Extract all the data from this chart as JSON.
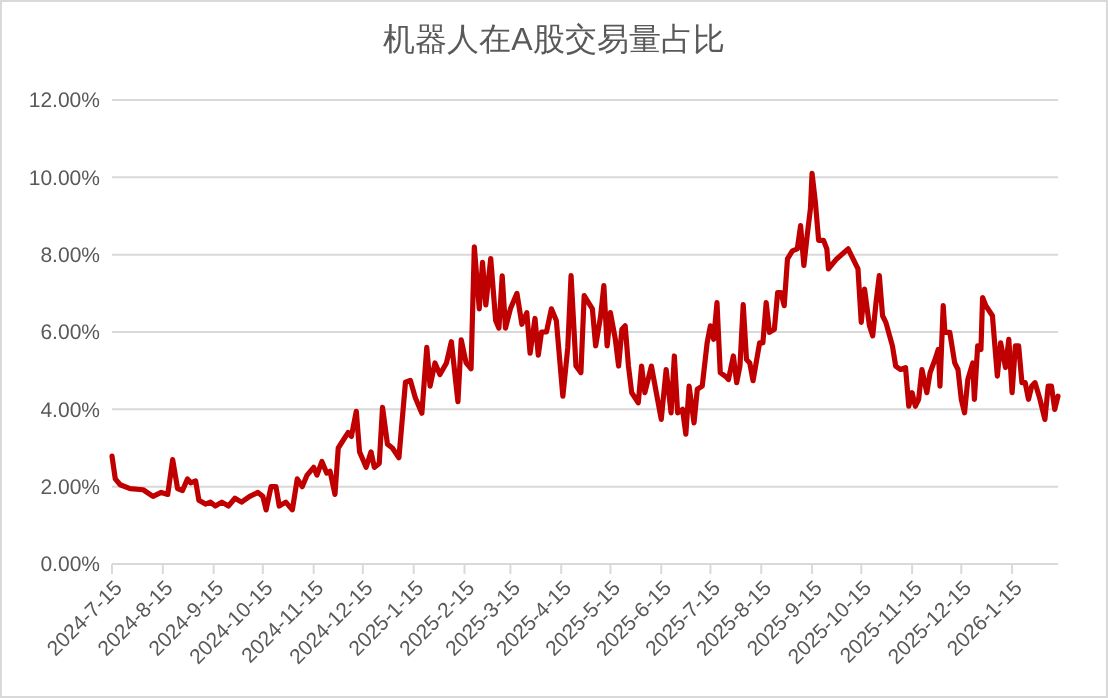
{
  "chart_data": {
    "type": "line",
    "title": "机器人在A股交易量占比",
    "x": [
      "2024-07-15",
      "2024-07-17",
      "2024-07-20",
      "2024-07-26",
      "2024-08-03",
      "2024-08-09",
      "2024-08-14",
      "2024-08-18",
      "2024-08-21",
      "2024-08-24",
      "2024-08-27",
      "2024-08-30",
      "2024-09-01",
      "2024-09-04",
      "2024-09-06",
      "2024-09-10",
      "2024-09-13",
      "2024-09-16",
      "2024-09-20",
      "2024-09-24",
      "2024-09-28",
      "2024-10-02",
      "2024-10-07",
      "2024-10-12",
      "2024-10-15",
      "2024-10-17",
      "2024-10-20",
      "2024-10-23",
      "2024-10-25",
      "2024-10-29",
      "2024-11-02",
      "2024-11-05",
      "2024-11-08",
      "2024-11-11",
      "2024-11-15",
      "2024-11-17",
      "2024-11-20",
      "2024-11-23",
      "2024-11-25",
      "2024-11-28",
      "2024-11-30",
      "2024-12-03",
      "2024-12-06",
      "2024-12-08",
      "2024-12-11",
      "2024-12-13",
      "2024-12-15",
      "2024-12-17",
      "2024-12-20",
      "2024-12-22",
      "2024-12-25",
      "2024-12-27",
      "2024-12-30",
      "2025-01-02",
      "2025-01-06",
      "2025-01-10",
      "2025-01-13",
      "2025-01-16",
      "2025-01-20",
      "2025-01-23",
      "2025-01-25",
      "2025-01-28",
      "2025-01-31",
      "2025-02-04",
      "2025-02-07",
      "2025-02-11",
      "2025-02-13",
      "2025-02-16",
      "2025-02-19",
      "2025-02-21",
      "2025-02-24",
      "2025-02-26",
      "2025-02-28",
      "2025-03-03",
      "2025-03-06",
      "2025-03-08",
      "2025-03-10",
      "2025-03-12",
      "2025-03-15",
      "2025-03-19",
      "2025-03-22",
      "2025-03-25",
      "2025-03-27",
      "2025-03-30",
      "2025-04-01",
      "2025-04-03",
      "2025-04-06",
      "2025-04-09",
      "2025-04-12",
      "2025-04-16",
      "2025-04-19",
      "2025-04-21",
      "2025-04-24",
      "2025-04-27",
      "2025-04-29",
      "2025-05-04",
      "2025-05-06",
      "2025-05-09",
      "2025-05-11",
      "2025-05-13",
      "2025-05-15",
      "2025-05-18",
      "2025-05-20",
      "2025-05-22",
      "2025-05-24",
      "2025-05-26",
      "2025-05-28",
      "2025-06-01",
      "2025-06-03",
      "2025-06-05",
      "2025-06-09",
      "2025-06-12",
      "2025-06-15",
      "2025-06-18",
      "2025-06-21",
      "2025-06-23",
      "2025-06-25",
      "2025-06-28",
      "2025-06-30",
      "2025-07-02",
      "2025-07-05",
      "2025-07-07",
      "2025-07-10",
      "2025-07-13",
      "2025-07-15",
      "2025-07-17",
      "2025-07-19",
      "2025-07-21",
      "2025-07-24",
      "2025-07-26",
      "2025-07-29",
      "2025-07-31",
      "2025-08-02",
      "2025-08-04",
      "2025-08-06",
      "2025-08-08",
      "2025-08-10",
      "2025-08-14",
      "2025-08-16",
      "2025-08-18",
      "2025-08-20",
      "2025-08-23",
      "2025-08-25",
      "2025-08-27",
      "2025-08-29",
      "2025-08-31",
      "2025-09-03",
      "2025-09-06",
      "2025-09-08",
      "2025-09-10",
      "2025-09-12",
      "2025-09-14",
      "2025-09-15",
      "2025-09-17",
      "2025-09-19",
      "2025-09-22",
      "2025-09-24",
      "2025-09-25",
      "2025-09-30",
      "2025-10-07",
      "2025-10-10",
      "2025-10-13",
      "2025-10-15",
      "2025-10-17",
      "2025-10-20",
      "2025-10-22",
      "2025-10-24",
      "2025-10-26",
      "2025-10-28",
      "2025-10-30",
      "2025-11-03",
      "2025-11-05",
      "2025-11-08",
      "2025-11-11",
      "2025-11-13",
      "2025-11-15",
      "2025-11-17",
      "2025-11-19",
      "2025-11-21",
      "2025-11-24",
      "2025-11-26",
      "2025-11-29",
      "2025-12-01",
      "2025-12-02",
      "2025-12-04",
      "2025-12-05",
      "2025-12-08",
      "2025-12-11",
      "2025-12-13",
      "2025-12-15",
      "2025-12-17",
      "2025-12-19",
      "2025-12-22",
      "2025-12-23",
      "2025-12-25",
      "2025-12-27",
      "2025-12-28",
      "2025-12-30",
      "2026-01-03",
      "2026-01-06",
      "2026-01-08",
      "2026-01-11",
      "2026-01-13",
      "2026-01-15",
      "2026-01-17",
      "2026-01-19",
      "2026-01-21",
      "2026-01-23",
      "2026-01-25",
      "2026-01-27",
      "2026-01-29",
      "2026-02-01",
      "2026-02-04",
      "2026-02-06",
      "2026-02-08",
      "2026-02-10",
      "2026-02-12"
    ],
    "series": [
      {
        "color": "#c00000",
        "values": [
          2.79,
          2.2,
          2.05,
          1.95,
          1.92,
          1.75,
          1.85,
          1.8,
          2.7,
          1.95,
          1.9,
          2.2,
          2.1,
          2.15,
          1.65,
          1.55,
          1.6,
          1.5,
          1.6,
          1.5,
          1.7,
          1.6,
          1.75,
          1.85,
          1.75,
          1.4,
          2.0,
          2.0,
          1.5,
          1.6,
          1.4,
          2.2,
          2.0,
          2.3,
          2.5,
          2.3,
          2.65,
          2.35,
          2.4,
          1.8,
          3.0,
          3.2,
          3.4,
          3.3,
          3.95,
          2.9,
          2.7,
          2.5,
          2.9,
          2.5,
          2.6,
          4.05,
          3.1,
          3.0,
          2.75,
          4.7,
          4.75,
          4.3,
          3.9,
          5.6,
          4.6,
          5.2,
          4.9,
          5.2,
          5.75,
          4.2,
          5.8,
          5.2,
          5.05,
          8.2,
          6.6,
          7.8,
          6.7,
          7.9,
          6.3,
          6.1,
          7.45,
          6.1,
          6.6,
          7.0,
          6.2,
          6.5,
          5.45,
          6.35,
          5.4,
          6.0,
          6.0,
          6.6,
          6.3,
          4.34,
          5.6,
          7.46,
          5.12,
          4.95,
          6.94,
          6.6,
          5.64,
          6.4,
          7.2,
          5.64,
          6.5,
          5.81,
          5.12,
          6.07,
          6.16,
          5.12,
          4.43,
          4.17,
          5.12,
          4.43,
          5.12,
          4.43,
          3.74,
          5.03,
          3.91,
          5.38,
          3.91,
          4.0,
          3.36,
          4.6,
          3.65,
          4.52,
          4.6,
          5.72,
          6.16,
          5.81,
          6.76,
          4.95,
          4.86,
          4.77,
          5.38,
          4.69,
          5.12,
          6.71,
          5.29,
          5.2,
          4.74,
          5.72,
          5.72,
          6.76,
          5.99,
          6.07,
          7.02,
          7.02,
          6.68,
          7.89,
          8.1,
          8.15,
          8.75,
          7.72,
          8.49,
          9.19,
          10.1,
          9.36,
          8.37,
          8.37,
          8.15,
          7.63,
          7.89,
          8.15,
          7.89,
          7.63,
          6.25,
          7.11,
          6.16,
          5.9,
          6.76,
          7.46,
          6.42,
          6.25,
          5.64,
          5.12,
          5.03,
          5.08,
          4.08,
          4.43,
          4.08,
          4.26,
          5.03,
          4.43,
          4.95,
          5.29,
          5.55,
          4.6,
          6.68,
          5.99,
          5.99,
          5.2,
          5.03,
          4.26,
          3.91,
          4.77,
          5.2,
          4.26,
          5.64,
          5.55,
          6.89,
          6.68,
          6.42,
          4.86,
          5.72,
          5.08,
          5.81,
          4.43,
          5.64,
          5.64,
          4.69,
          4.69,
          4.26,
          4.6,
          4.69,
          4.26,
          3.74,
          4.6,
          4.6,
          4.0,
          4.34
        ]
      }
    ],
    "xlim": [
      "2024-07-15",
      "2026-02-12"
    ],
    "xticks": [
      {
        "value": "2024-07-15",
        "label": "2024-7-15"
      },
      {
        "value": "2024-08-15",
        "label": "2024-8-15"
      },
      {
        "value": "2024-09-15",
        "label": "2024-9-15"
      },
      {
        "value": "2024-10-15",
        "label": "2024-10-15"
      },
      {
        "value": "2024-11-15",
        "label": "2024-11-15"
      },
      {
        "value": "2024-12-15",
        "label": "2024-12-15"
      },
      {
        "value": "2025-01-15",
        "label": "2025-1-15"
      },
      {
        "value": "2025-02-15",
        "label": "2025-2-15"
      },
      {
        "value": "2025-03-15",
        "label": "2025-3-15"
      },
      {
        "value": "2025-04-15",
        "label": "2025-4-15"
      },
      {
        "value": "2025-05-15",
        "label": "2025-5-15"
      },
      {
        "value": "2025-06-15",
        "label": "2025-6-15"
      },
      {
        "value": "2025-07-15",
        "label": "2025-7-15"
      },
      {
        "value": "2025-08-15",
        "label": "2025-8-15"
      },
      {
        "value": "2025-09-15",
        "label": "2025-9-15"
      },
      {
        "value": "2025-10-15",
        "label": "2025-10-15"
      },
      {
        "value": "2025-11-15",
        "label": "2025-11-15"
      },
      {
        "value": "2025-12-15",
        "label": "2025-12-15"
      },
      {
        "value": "2026-01-15",
        "label": "2026-1-15"
      }
    ],
    "ylim": [
      0,
      12
    ],
    "yticks": [
      {
        "value": 0,
        "label": "0.00%"
      },
      {
        "value": 2,
        "label": "2.00%"
      },
      {
        "value": 4,
        "label": "4.00%"
      },
      {
        "value": 6,
        "label": "6.00%"
      },
      {
        "value": 8,
        "label": "8.00%"
      },
      {
        "value": 10,
        "label": "10.00%"
      },
      {
        "value": 12,
        "label": "12.00%"
      }
    ],
    "grid": "y",
    "marker": "none",
    "line_style": "solid"
  }
}
